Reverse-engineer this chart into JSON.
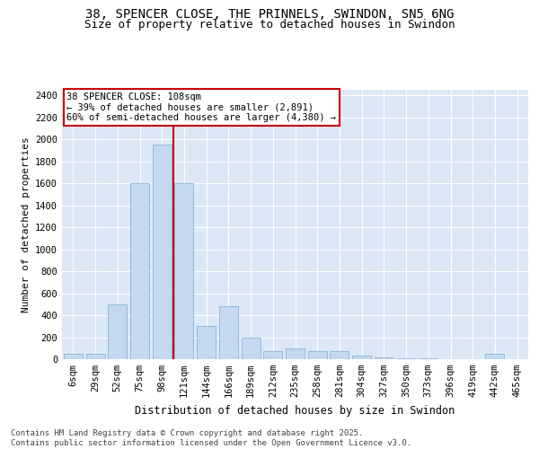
{
  "title1": "38, SPENCER CLOSE, THE PRINNELS, SWINDON, SN5 6NG",
  "title2": "Size of property relative to detached houses in Swindon",
  "xlabel": "Distribution of detached houses by size in Swindon",
  "ylabel": "Number of detached properties",
  "categories": [
    "6sqm",
    "29sqm",
    "52sqm",
    "75sqm",
    "98sqm",
    "121sqm",
    "144sqm",
    "166sqm",
    "189sqm",
    "212sqm",
    "235sqm",
    "258sqm",
    "281sqm",
    "304sqm",
    "327sqm",
    "350sqm",
    "373sqm",
    "396sqm",
    "419sqm",
    "442sqm",
    "465sqm"
  ],
  "values": [
    50,
    50,
    500,
    1600,
    1950,
    1600,
    300,
    480,
    200,
    70,
    100,
    70,
    70,
    30,
    20,
    10,
    5,
    3,
    2,
    50,
    2
  ],
  "bar_color": "#c5d8f0",
  "bar_edge_color": "#7aaad0",
  "vline_x": 4.5,
  "vline_color": "#cc0000",
  "annotation_text": "38 SPENCER CLOSE: 108sqm\n← 39% of detached houses are smaller (2,891)\n60% of semi-detached houses are larger (4,380) →",
  "annotation_box_color": "#ffffff",
  "annotation_box_edge_color": "#cc0000",
  "ylim": [
    0,
    2450
  ],
  "yticks": [
    0,
    200,
    400,
    600,
    800,
    1000,
    1200,
    1400,
    1600,
    1800,
    2000,
    2200,
    2400
  ],
  "background_color": "#dce8f5",
  "footer_text": "Contains HM Land Registry data © Crown copyright and database right 2025.\nContains public sector information licensed under the Open Government Licence v3.0.",
  "title_fontsize": 10,
  "subtitle_fontsize": 9,
  "axis_label_fontsize": 8.5,
  "tick_fontsize": 7.5,
  "annotation_fontsize": 7.5,
  "footer_fontsize": 6.5,
  "ylabel_fontsize": 8
}
